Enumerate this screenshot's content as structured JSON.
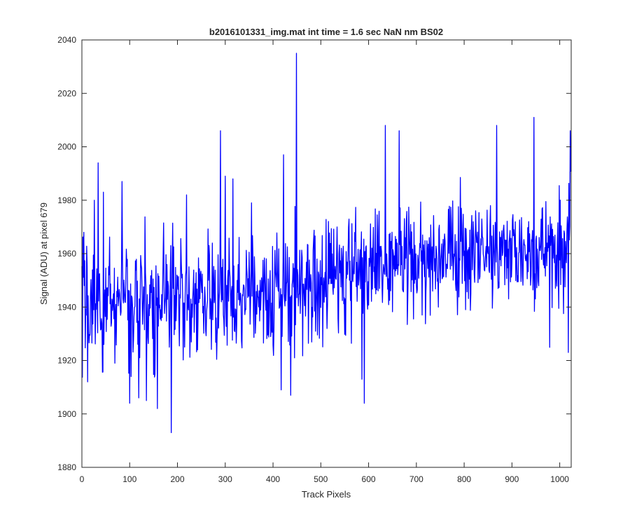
{
  "chart_data": {
    "type": "line",
    "title": "b2016101331_img.mat int time = 1.6 sec  NaN nm BS02",
    "xlabel": "Track Pixels",
    "ylabel": "Signal (ADU) at pixel 679",
    "xlim": [
      0,
      1024
    ],
    "ylim": [
      1880,
      2040
    ],
    "xticks": [
      0,
      100,
      200,
      300,
      400,
      500,
      600,
      700,
      800,
      900,
      1000
    ],
    "yticks": [
      1880,
      1900,
      1920,
      1940,
      1960,
      1980,
      2000,
      2020,
      2040
    ],
    "grid": false,
    "legend": "none",
    "series": [
      {
        "color": "#0000ff",
        "trend": {
          "x": [
            0,
            250,
            400,
            500,
            600,
            800,
            1024
          ],
          "y": [
            1942,
            1945,
            1944,
            1950,
            1955,
            1960,
            1962
          ]
        },
        "noise_amplitude": 17,
        "peaks": [
          {
            "x": 4,
            "y": 1968
          },
          {
            "x": 12,
            "y": 1912
          },
          {
            "x": 26,
            "y": 1980
          },
          {
            "x": 34,
            "y": 1994
          },
          {
            "x": 45,
            "y": 1983
          },
          {
            "x": 84,
            "y": 1987
          },
          {
            "x": 100,
            "y": 1904
          },
          {
            "x": 103,
            "y": 1914
          },
          {
            "x": 119,
            "y": 1906
          },
          {
            "x": 135,
            "y": 1905
          },
          {
            "x": 158,
            "y": 1902
          },
          {
            "x": 183,
            "y": 1925
          },
          {
            "x": 187,
            "y": 1893
          },
          {
            "x": 219,
            "y": 1982
          },
          {
            "x": 290,
            "y": 2006
          },
          {
            "x": 300,
            "y": 1989
          },
          {
            "x": 316,
            "y": 1988
          },
          {
            "x": 355,
            "y": 1979
          },
          {
            "x": 417,
            "y": 1909
          },
          {
            "x": 422,
            "y": 1997
          },
          {
            "x": 437,
            "y": 1907
          },
          {
            "x": 449,
            "y": 2035
          },
          {
            "x": 586,
            "y": 1913
          },
          {
            "x": 591,
            "y": 1904
          },
          {
            "x": 635,
            "y": 2008
          },
          {
            "x": 664,
            "y": 2006
          },
          {
            "x": 868,
            "y": 2008
          },
          {
            "x": 946,
            "y": 2011
          },
          {
            "x": 1018,
            "y": 1923
          },
          {
            "x": 1022,
            "y": 2006
          }
        ]
      }
    ]
  }
}
